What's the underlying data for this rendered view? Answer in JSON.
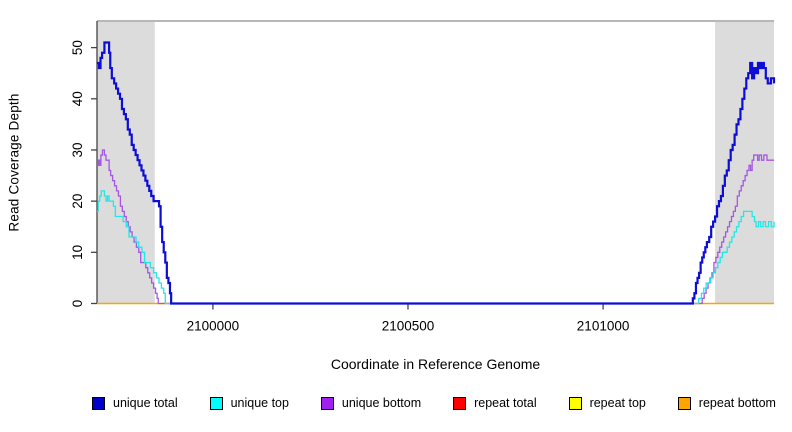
{
  "figure": {
    "background": "#FFFFFF",
    "axis_color": "#444444",
    "top_border_color": "#8C8C8C"
  },
  "chart_data": {
    "type": "line",
    "step": true,
    "title": "",
    "xlabel": "Coordinate in Reference Genome",
    "ylabel": "Read Coverage Depth",
    "xlim": [
      2099703,
      2101438
    ],
    "ylim": [
      0,
      55.2
    ],
    "xticks": [
      2100000,
      2100500,
      2101000
    ],
    "yticks": [
      0,
      10,
      20,
      30,
      40,
      50
    ],
    "grid": false,
    "legend_position": "bottom",
    "masked_region_color": "#DCDCDC",
    "masked_regions": [
      {
        "name": "left-masked-region",
        "x0": 2099703,
        "x1": 2099851
      },
      {
        "name": "right-masked-region",
        "x0": 2101287,
        "x1": 2101438
      }
    ],
    "legend": [
      {
        "label": "unique total",
        "color": "#0000CD"
      },
      {
        "label": "unique top",
        "color": "#00FFFF"
      },
      {
        "label": "unique bottom",
        "color": "#A020F0"
      },
      {
        "label": "repeat total",
        "color": "#FF0000"
      },
      {
        "label": "repeat top",
        "color": "#FFFF00"
      },
      {
        "label": "repeat bottom",
        "color": "#FFA500"
      }
    ],
    "series": [
      {
        "name": "unique total",
        "color": "#0D0DD6",
        "line_width": 2.2,
        "z": 6,
        "points": [
          [
            2099703,
            47
          ],
          [
            2099708,
            46
          ],
          [
            2099712,
            48
          ],
          [
            2099716,
            49
          ],
          [
            2099722,
            51
          ],
          [
            2099730,
            51
          ],
          [
            2099734,
            49
          ],
          [
            2099737,
            46
          ],
          [
            2099741,
            44
          ],
          [
            2099747,
            43
          ],
          [
            2099752,
            42
          ],
          [
            2099757,
            41
          ],
          [
            2099762,
            40
          ],
          [
            2099767,
            38
          ],
          [
            2099772,
            37
          ],
          [
            2099777,
            36
          ],
          [
            2099782,
            34
          ],
          [
            2099787,
            33
          ],
          [
            2099792,
            31
          ],
          [
            2099797,
            30
          ],
          [
            2099802,
            29
          ],
          [
            2099807,
            28
          ],
          [
            2099812,
            27
          ],
          [
            2099817,
            26
          ],
          [
            2099822,
            25
          ],
          [
            2099827,
            24
          ],
          [
            2099832,
            23
          ],
          [
            2099837,
            22
          ],
          [
            2099842,
            21
          ],
          [
            2099848,
            20
          ],
          [
            2099858,
            20
          ],
          [
            2099862,
            19
          ],
          [
            2099866,
            15
          ],
          [
            2099870,
            12
          ],
          [
            2099874,
            10
          ],
          [
            2099878,
            8
          ],
          [
            2099882,
            5
          ],
          [
            2099886,
            4
          ],
          [
            2099890,
            2
          ],
          [
            2099893,
            0
          ],
          [
            2101225,
            0
          ],
          [
            2101230,
            1
          ],
          [
            2101234,
            2
          ],
          [
            2101238,
            4
          ],
          [
            2101242,
            5
          ],
          [
            2101246,
            6
          ],
          [
            2101250,
            8
          ],
          [
            2101254,
            9
          ],
          [
            2101258,
            10
          ],
          [
            2101262,
            11
          ],
          [
            2101266,
            12
          ],
          [
            2101272,
            13
          ],
          [
            2101277,
            15
          ],
          [
            2101282,
            16
          ],
          [
            2101287,
            17
          ],
          [
            2101292,
            19
          ],
          [
            2101297,
            20
          ],
          [
            2101302,
            21
          ],
          [
            2101307,
            23
          ],
          [
            2101312,
            25
          ],
          [
            2101317,
            26
          ],
          [
            2101322,
            28
          ],
          [
            2101327,
            30
          ],
          [
            2101332,
            31
          ],
          [
            2101337,
            33
          ],
          [
            2101342,
            35
          ],
          [
            2101347,
            36
          ],
          [
            2101352,
            38
          ],
          [
            2101357,
            40
          ],
          [
            2101362,
            42
          ],
          [
            2101367,
            44
          ],
          [
            2101372,
            45
          ],
          [
            2101377,
            47
          ],
          [
            2101382,
            44
          ],
          [
            2101387,
            46
          ],
          [
            2101392,
            45
          ],
          [
            2101397,
            47
          ],
          [
            2101402,
            46
          ],
          [
            2101407,
            47
          ],
          [
            2101412,
            46
          ],
          [
            2101417,
            44
          ],
          [
            2101422,
            43
          ],
          [
            2101430,
            44
          ],
          [
            2101438,
            43
          ]
        ]
      },
      {
        "name": "unique top",
        "color": "#21E8E8",
        "line_width": 1.3,
        "z": 5,
        "points": [
          [
            2099703,
            18
          ],
          [
            2099706,
            20
          ],
          [
            2099710,
            21
          ],
          [
            2099714,
            22
          ],
          [
            2099718,
            22
          ],
          [
            2099722,
            21
          ],
          [
            2099726,
            20
          ],
          [
            2099730,
            21
          ],
          [
            2099734,
            20
          ],
          [
            2099740,
            20
          ],
          [
            2099745,
            19
          ],
          [
            2099750,
            17
          ],
          [
            2099760,
            17
          ],
          [
            2099770,
            16
          ],
          [
            2099778,
            15
          ],
          [
            2099785,
            13
          ],
          [
            2099795,
            13
          ],
          [
            2099803,
            12
          ],
          [
            2099810,
            11
          ],
          [
            2099818,
            10
          ],
          [
            2099825,
            8
          ],
          [
            2099833,
            8
          ],
          [
            2099840,
            7
          ],
          [
            2099848,
            6
          ],
          [
            2099855,
            5
          ],
          [
            2099862,
            4
          ],
          [
            2099868,
            3
          ],
          [
            2099874,
            2
          ],
          [
            2099878,
            0
          ],
          [
            2101240,
            0
          ],
          [
            2101245,
            1
          ],
          [
            2101252,
            2
          ],
          [
            2101258,
            3
          ],
          [
            2101264,
            4
          ],
          [
            2101270,
            4
          ],
          [
            2101276,
            5
          ],
          [
            2101282,
            6
          ],
          [
            2101288,
            7
          ],
          [
            2101294,
            8
          ],
          [
            2101300,
            9
          ],
          [
            2101306,
            10
          ],
          [
            2101312,
            10
          ],
          [
            2101318,
            11
          ],
          [
            2101324,
            12
          ],
          [
            2101330,
            13
          ],
          [
            2101336,
            14
          ],
          [
            2101342,
            15
          ],
          [
            2101348,
            16
          ],
          [
            2101354,
            17
          ],
          [
            2101360,
            18
          ],
          [
            2101368,
            18
          ],
          [
            2101376,
            18
          ],
          [
            2101382,
            17
          ],
          [
            2101388,
            16
          ],
          [
            2101392,
            15
          ],
          [
            2101398,
            16
          ],
          [
            2101404,
            15
          ],
          [
            2101410,
            16
          ],
          [
            2101416,
            15
          ],
          [
            2101424,
            16
          ],
          [
            2101431,
            15
          ],
          [
            2101438,
            16
          ]
        ]
      },
      {
        "name": "unique bottom",
        "color": "#A556E3",
        "line_width": 1.3,
        "z": 4,
        "points": [
          [
            2099703,
            27
          ],
          [
            2099707,
            28
          ],
          [
            2099710,
            27
          ],
          [
            2099713,
            29
          ],
          [
            2099717,
            30
          ],
          [
            2099722,
            29
          ],
          [
            2099726,
            28
          ],
          [
            2099730,
            28
          ],
          [
            2099734,
            26
          ],
          [
            2099738,
            25
          ],
          [
            2099743,
            24
          ],
          [
            2099748,
            23
          ],
          [
            2099753,
            22
          ],
          [
            2099758,
            21
          ],
          [
            2099763,
            19
          ],
          [
            2099768,
            18
          ],
          [
            2099773,
            17
          ],
          [
            2099778,
            16
          ],
          [
            2099783,
            15
          ],
          [
            2099788,
            14
          ],
          [
            2099793,
            13
          ],
          [
            2099798,
            12
          ],
          [
            2099804,
            11
          ],
          [
            2099810,
            10
          ],
          [
            2099815,
            8
          ],
          [
            2099822,
            8
          ],
          [
            2099828,
            7
          ],
          [
            2099833,
            6
          ],
          [
            2099838,
            5
          ],
          [
            2099843,
            4
          ],
          [
            2099848,
            3
          ],
          [
            2099853,
            2
          ],
          [
            2099857,
            1
          ],
          [
            2099860,
            0
          ],
          [
            2101249,
            0
          ],
          [
            2101254,
            1
          ],
          [
            2101259,
            2
          ],
          [
            2101264,
            3
          ],
          [
            2101269,
            4
          ],
          [
            2101274,
            5
          ],
          [
            2101279,
            6
          ],
          [
            2101284,
            8
          ],
          [
            2101289,
            9
          ],
          [
            2101294,
            10
          ],
          [
            2101299,
            11
          ],
          [
            2101304,
            12
          ],
          [
            2101309,
            13
          ],
          [
            2101314,
            14
          ],
          [
            2101319,
            15
          ],
          [
            2101324,
            16
          ],
          [
            2101329,
            17
          ],
          [
            2101334,
            18
          ],
          [
            2101339,
            19
          ],
          [
            2101344,
            21
          ],
          [
            2101349,
            22
          ],
          [
            2101354,
            23
          ],
          [
            2101359,
            24
          ],
          [
            2101364,
            25
          ],
          [
            2101369,
            26
          ],
          [
            2101374,
            27
          ],
          [
            2101378,
            26
          ],
          [
            2101382,
            28
          ],
          [
            2101386,
            29
          ],
          [
            2101392,
            29
          ],
          [
            2101396,
            28
          ],
          [
            2101400,
            29
          ],
          [
            2101406,
            28
          ],
          [
            2101412,
            29
          ],
          [
            2101420,
            28
          ],
          [
            2101430,
            28
          ],
          [
            2101438,
            28
          ]
        ]
      },
      {
        "name": "repeat total",
        "color": "#FF0000",
        "line_width": 1.0,
        "z": 1,
        "points": [
          [
            2099703,
            0
          ],
          [
            2101438,
            0
          ]
        ]
      },
      {
        "name": "repeat top",
        "color": "#FFFF00",
        "line_width": 1.0,
        "z": 2,
        "points": [
          [
            2099703,
            0
          ],
          [
            2101438,
            0
          ]
        ]
      },
      {
        "name": "repeat bottom",
        "color": "#FFA500",
        "line_width": 1.6,
        "z": 3,
        "points": [
          [
            2099703,
            0
          ],
          [
            2101438,
            0
          ]
        ]
      }
    ]
  }
}
